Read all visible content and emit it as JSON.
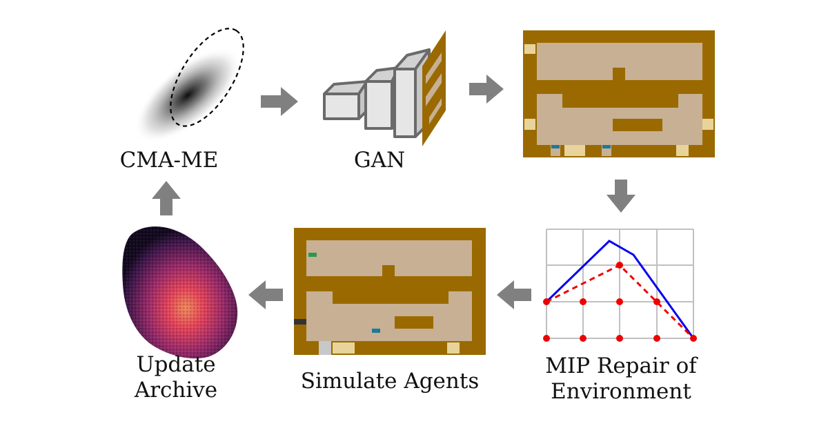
{
  "steps": {
    "cma_me": {
      "label": "CMA-ME"
    },
    "gan": {
      "label": "GAN"
    },
    "mip": {
      "line1": "MIP Repair of",
      "line2": "Environment"
    },
    "simulate": {
      "label": "Simulate Agents"
    },
    "archive": {
      "line1": "Update",
      "line2": "Archive"
    }
  },
  "colors": {
    "arrow": "#808080",
    "kitchen_wall": "#9a6a00",
    "kitchen_floor": "#c8b094",
    "mip_solution": "#0000ee",
    "mip_relaxation": "#ee0000",
    "grid": "#c0c0c0"
  }
}
